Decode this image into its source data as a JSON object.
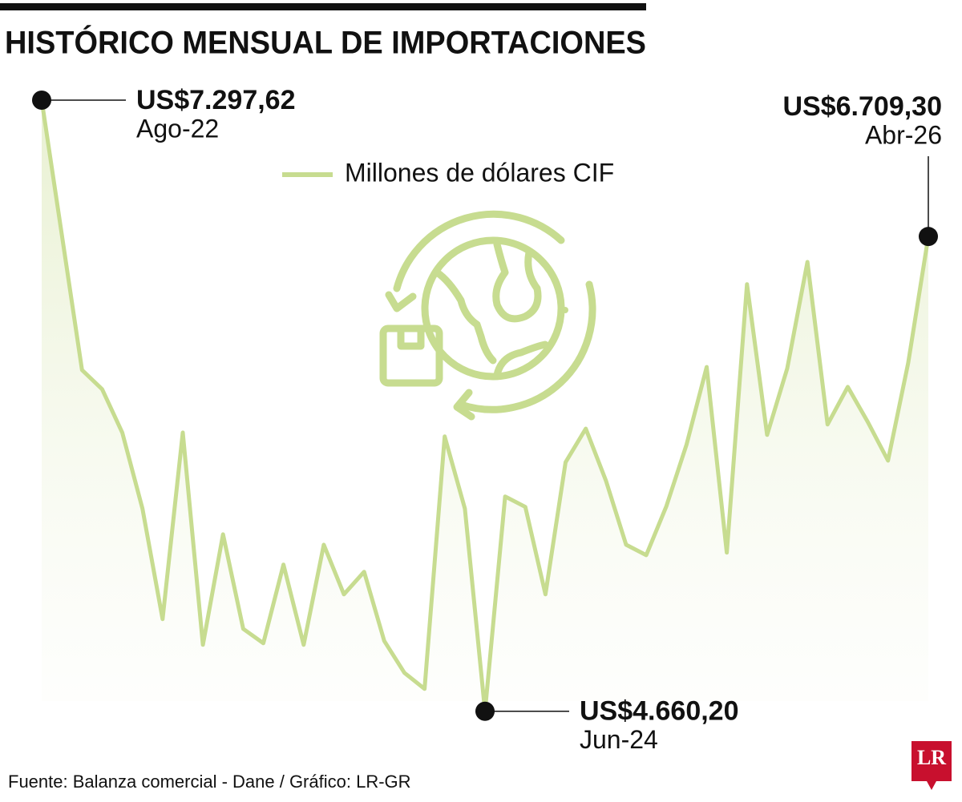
{
  "chart_data": {
    "type": "line",
    "title": "HISTÓRICO MENSUAL DE IMPORTACIONES",
    "source": "Fuente: Balanza comercial - Dane / Gráfico: LR-GR",
    "logo": "LR",
    "categories": [
      "Ago-22",
      null,
      null,
      null,
      null,
      null,
      null,
      null,
      null,
      null,
      null,
      null,
      null,
      null,
      null,
      null,
      null,
      null,
      null,
      null,
      null,
      null,
      "Jun-24",
      null,
      null,
      null,
      null,
      null,
      null,
      null,
      null,
      null,
      null,
      null,
      null,
      null,
      null,
      null,
      null,
      null,
      null,
      null,
      null,
      null,
      "Abr-26"
    ],
    "series": [
      {
        "name": "Millones de dólares CIF",
        "color": "#c7dc90",
        "values": [
          7297.62,
          6717,
          6133,
          6050,
          5863,
          5535,
          5058,
          5863,
          4947,
          5424,
          5016,
          4954,
          5293,
          4947,
          5379,
          5165,
          5262,
          4964,
          4826,
          4757,
          5846,
          5535,
          4660.2,
          5587,
          5542,
          5165,
          5735,
          5880,
          5656,
          5379,
          5334,
          5545,
          5811,
          6146,
          5345,
          6503,
          5853,
          6140,
          6599,
          5898,
          6060,
          5908,
          5742,
          6164,
          6709.3
        ],
        "value_labels": [
          "US$7.297,62",
          null,
          null,
          null,
          null,
          null,
          null,
          null,
          null,
          null,
          null,
          null,
          null,
          null,
          null,
          null,
          null,
          null,
          null,
          null,
          null,
          null,
          "US$4.660,20",
          null,
          null,
          null,
          null,
          null,
          null,
          null,
          null,
          null,
          null,
          null,
          null,
          null,
          null,
          null,
          null,
          null,
          null,
          null,
          null,
          null,
          "US$6.709,30"
        ]
      }
    ],
    "ylim": [
      4400,
      7400
    ]
  }
}
